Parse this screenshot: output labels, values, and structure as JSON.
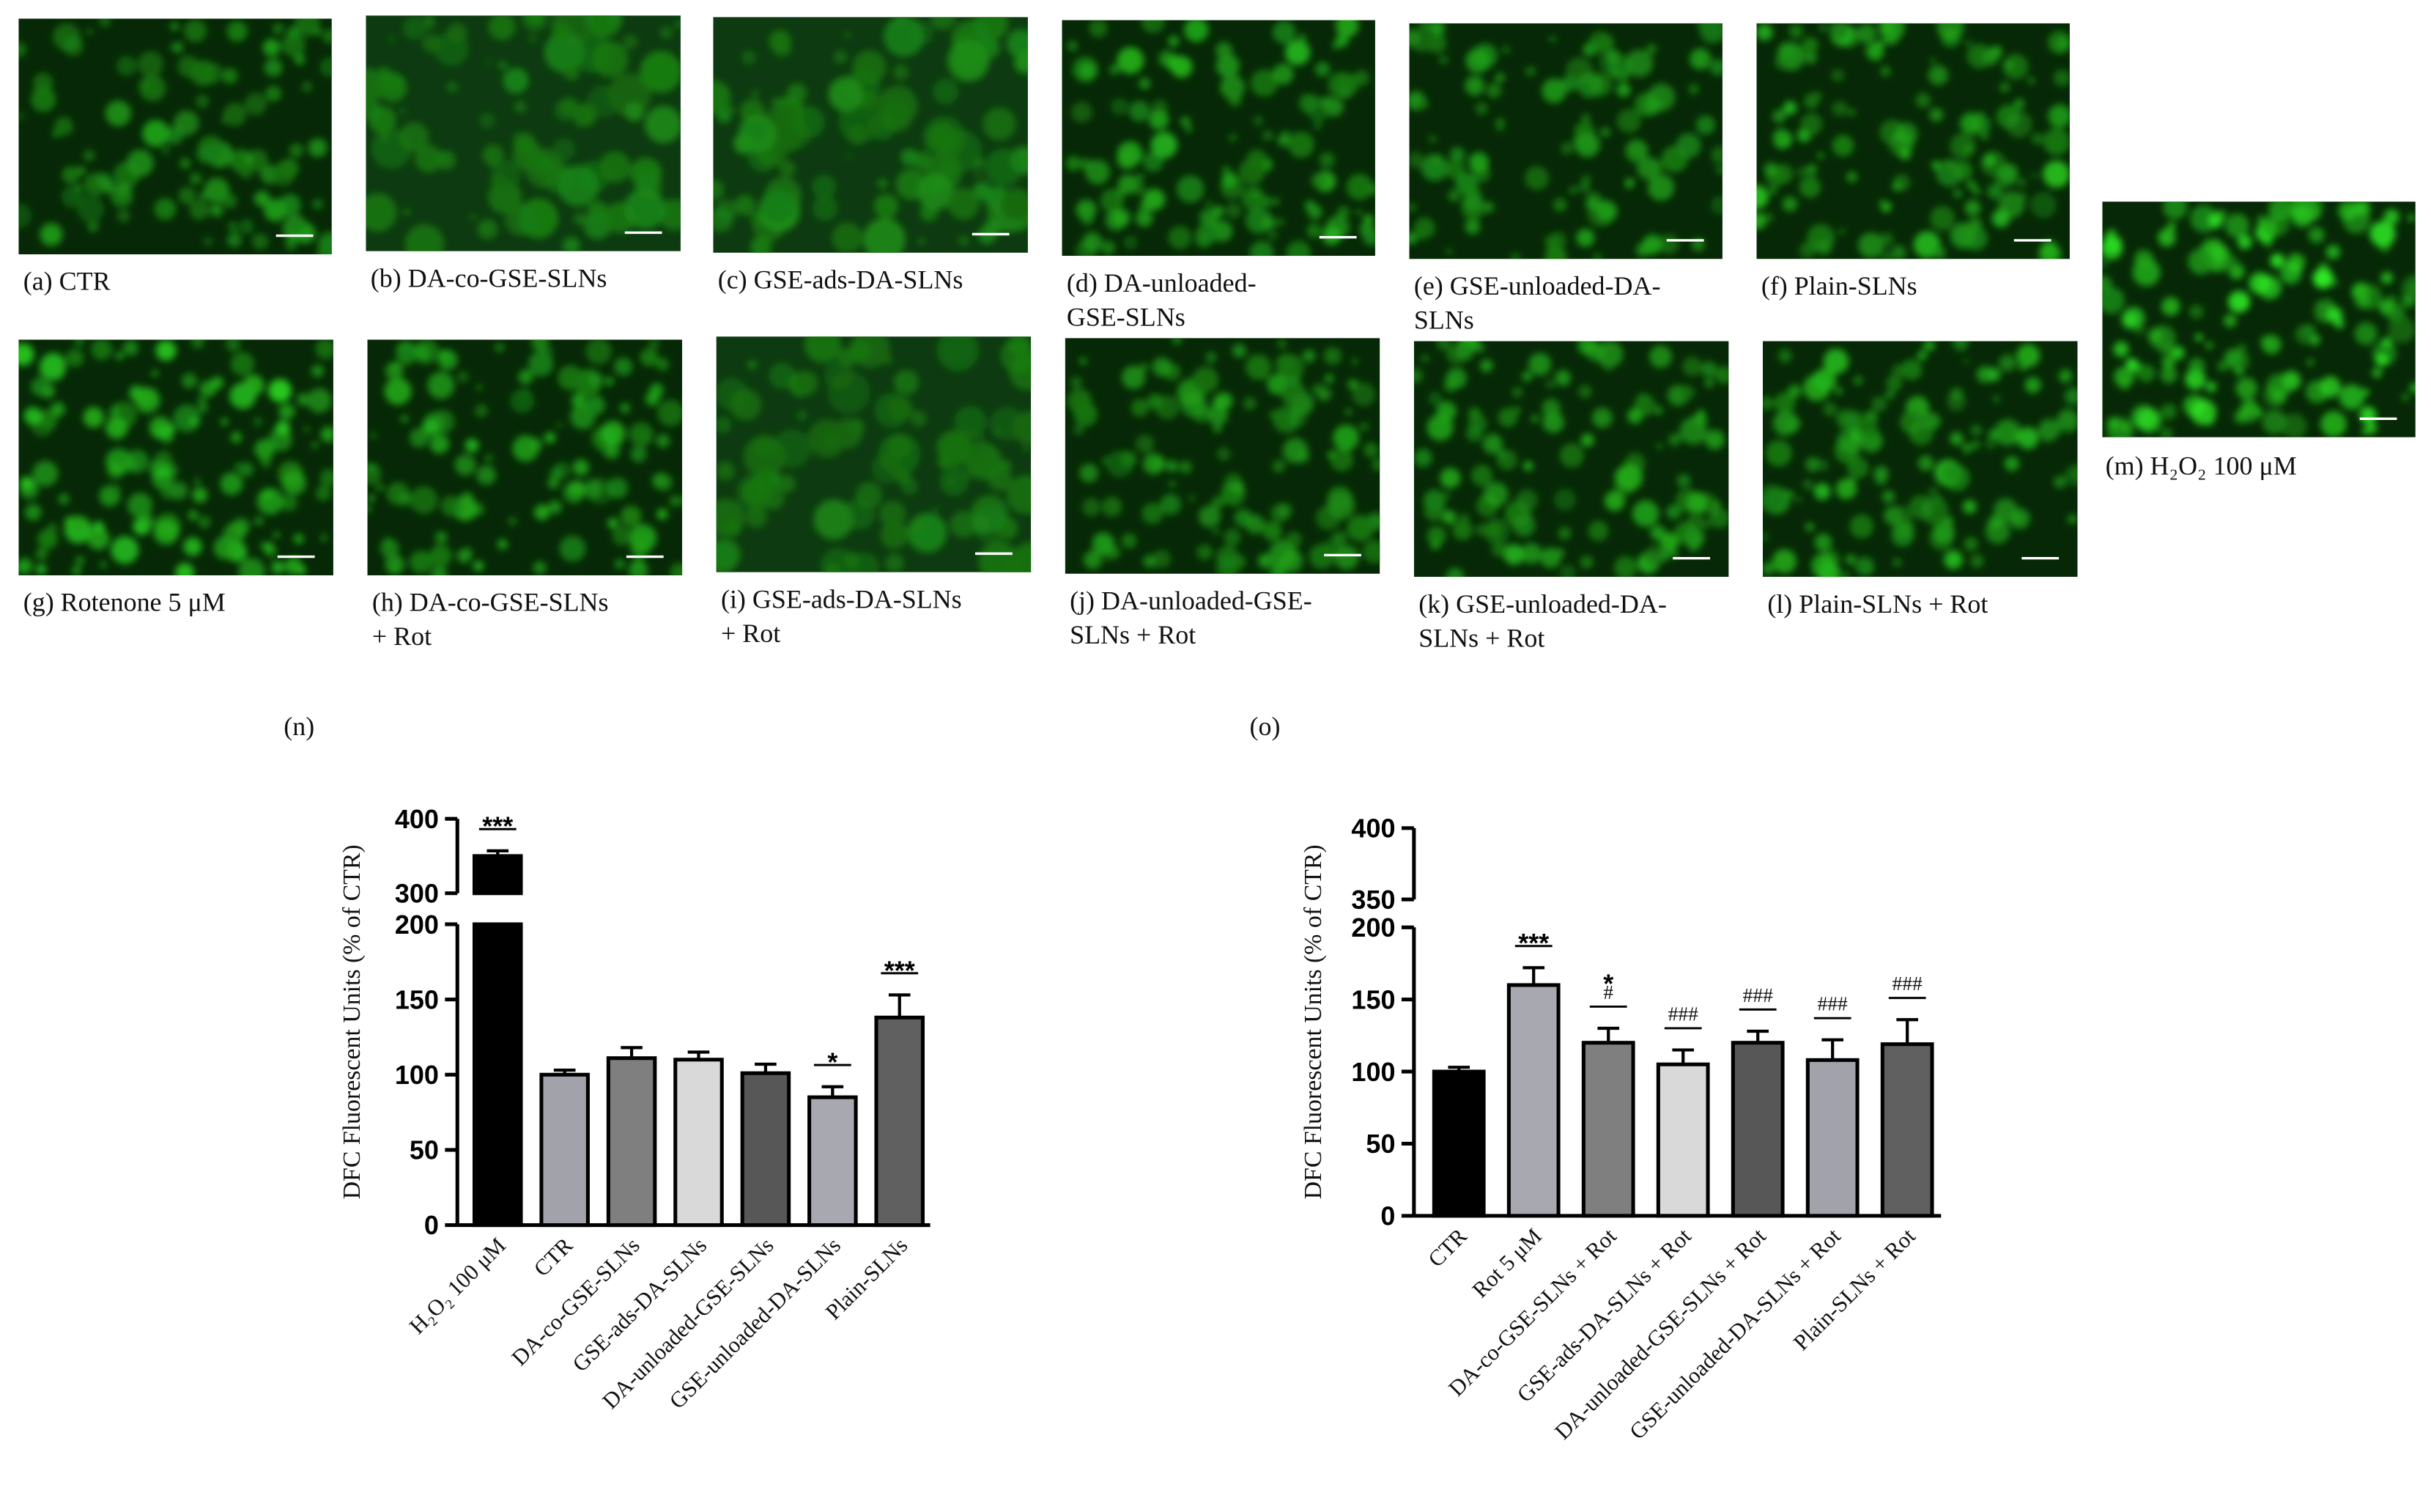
{
  "panels": [
    {
      "label": [
        "(a) CTR"
      ]
    },
    {
      "label": [
        "(b) DA-co-GSE-SLNs"
      ]
    },
    {
      "label": [
        "(c) GSE-ads-DA-SLNs"
      ]
    },
    {
      "label": [
        "(d) DA-unloaded-",
        "GSE-SLNs"
      ]
    },
    {
      "label": [
        "(e) GSE-unloaded-DA-",
        "SLNs"
      ]
    },
    {
      "label": [
        "(f) Plain-SLNs"
      ]
    },
    {
      "label": [
        "(g) Rotenone 5 μM"
      ]
    },
    {
      "label": [
        "(h) DA-co-GSE-SLNs",
        "+ Rot"
      ]
    },
    {
      "label": [
        "(i) GSE-ads-DA-SLNs",
        "+ Rot"
      ]
    },
    {
      "label": [
        "(j) DA-unloaded-GSE-",
        "SLNs + Rot"
      ]
    },
    {
      "label": [
        "(k) GSE-unloaded-DA-",
        "SLNs + Rot"
      ]
    },
    {
      "label": [
        "(l) Plain-SLNs + Rot"
      ]
    },
    {
      "label": [
        "(m) H₂O₂ 100 μM"
      ]
    }
  ],
  "chart_data": [
    {
      "type": "bar",
      "panel": "(n)",
      "ylabel": "DFC Fluorescent Units (% of CTR)",
      "categories": [
        "H₂O₂ 100 μM",
        "CTR",
        "DA-co-GSE-SLNs",
        "GSE-ads-DA-SLNs",
        "DA-unloaded-GSE-SLNs",
        "GSE-unloaded-DA-SLNs",
        "Plain-SLNs"
      ],
      "values": [
        350,
        100,
        111,
        110,
        101,
        85,
        138
      ],
      "errors": [
        7,
        3,
        7,
        5,
        6,
        7,
        15
      ],
      "colors": [
        "#000000",
        "#a2a2aa",
        "#7f7f7f",
        "#d9d9d9",
        "#575757",
        "#a8a8b0",
        "#606060"
      ],
      "significance": [
        "***",
        null,
        null,
        null,
        null,
        "*",
        "***"
      ],
      "ylim": [
        0,
        400
      ],
      "axis_break": [
        200,
        300
      ],
      "yticks": [
        0,
        50,
        100,
        150,
        200,
        300,
        400
      ]
    },
    {
      "type": "bar",
      "panel": "(o)",
      "ylabel": "DFC Fluorescent Units (% of CTR)",
      "categories": [
        "CTR",
        "Rot 5 μM",
        "DA-co-GSE-SLNs + Rot",
        "GSE-ads-DA-SLNs + Rot",
        "DA-unloaded-GSE-SLNs + Rot",
        "GSE-unloaded-DA-SLNs + Rot",
        "Plain-SLNs + Rot"
      ],
      "values": [
        100,
        160,
        120,
        105,
        120,
        108,
        119
      ],
      "errors": [
        3,
        12,
        10,
        10,
        8,
        14,
        17
      ],
      "colors": [
        "#000000",
        "#a8a8b0",
        "#7f7f7f",
        "#d9d9d9",
        "#575757",
        "#a2a2aa",
        "#606060"
      ],
      "significance": [
        null,
        "***",
        [
          "*",
          "#"
        ],
        "###",
        "###",
        "###",
        "###"
      ],
      "ylim": [
        0,
        400
      ],
      "axis_break": [
        200,
        350
      ],
      "yticks": [
        0,
        50,
        100,
        150,
        200,
        350,
        400
      ]
    }
  ]
}
